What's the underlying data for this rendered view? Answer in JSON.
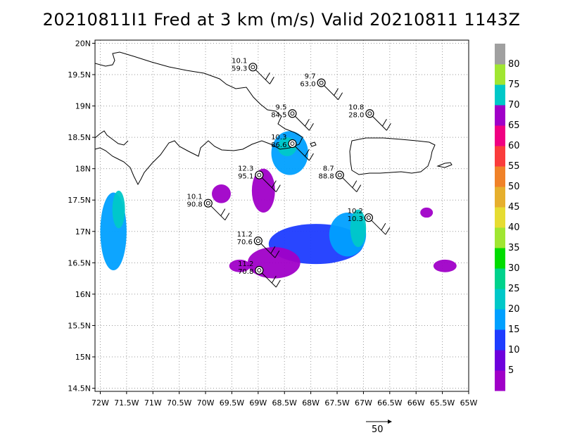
{
  "title": "20210811I1 Fred at 3 km (m/s) Valid 20210811  1143Z",
  "map": {
    "lon_range": [
      -72.1,
      -65.0
    ],
    "lat_range": [
      14.45,
      20.05
    ],
    "x_ticks": [
      {
        "v": -72,
        "label": "72W"
      },
      {
        "v": -71.5,
        "label": "71.5W"
      },
      {
        "v": -71,
        "label": "71W"
      },
      {
        "v": -70.5,
        "label": "70.5W"
      },
      {
        "v": -70,
        "label": "70W"
      },
      {
        "v": -69.5,
        "label": "69.5W"
      },
      {
        "v": -69,
        "label": "69W"
      },
      {
        "v": -68.5,
        "label": "68.5W"
      },
      {
        "v": -68,
        "label": "68W"
      },
      {
        "v": -67.5,
        "label": "67.5W"
      },
      {
        "v": -67,
        "label": "67W"
      },
      {
        "v": -66.5,
        "label": "66.5W"
      },
      {
        "v": -66,
        "label": "66W"
      },
      {
        "v": -65.5,
        "label": "65.5W"
      },
      {
        "v": -65,
        "label": "65W"
      }
    ],
    "y_ticks": [
      {
        "v": 20,
        "label": "20N"
      },
      {
        "v": 19.5,
        "label": "19.5N"
      },
      {
        "v": 19,
        "label": "19N"
      },
      {
        "v": 18.5,
        "label": "18.5N"
      },
      {
        "v": 18,
        "label": "18N"
      },
      {
        "v": 17.5,
        "label": "17.5N"
      },
      {
        "v": 17,
        "label": "17N"
      },
      {
        "v": 16.5,
        "label": "16.5N"
      },
      {
        "v": 16,
        "label": "16N"
      },
      {
        "v": 15.5,
        "label": "15.5N"
      },
      {
        "v": 15,
        "label": "15N"
      },
      {
        "v": 14.5,
        "label": "14.5N"
      }
    ],
    "grid": "dotted"
  },
  "colorbar": {
    "labels": [
      "5",
      "10",
      "15",
      "20",
      "25",
      "30",
      "35",
      "40",
      "45",
      "50",
      "55",
      "60",
      "65",
      "70",
      "75",
      "80"
    ],
    "colors": [
      "#a000c8",
      "#6e00dc",
      "#1e3cff",
      "#00a0ff",
      "#00c8c8",
      "#00d28c",
      "#00dc00",
      "#a0e632",
      "#e6dc32",
      "#e6af2d",
      "#f08228",
      "#fa3c3c",
      "#f00082",
      "#a000c8",
      "#00c8c8",
      "#a0e632",
      "#a0a0a0"
    ]
  },
  "observations": [
    {
      "label_top": "10.1",
      "label_bottom": "59.3",
      "lon": -69.1,
      "lat": 19.62
    },
    {
      "label_top": "9.7",
      "label_bottom": "63.0",
      "lon": -67.8,
      "lat": 19.37
    },
    {
      "label_top": "9.5",
      "label_bottom": "84.5",
      "lon": -68.35,
      "lat": 18.88
    },
    {
      "label_top": "10.8",
      "label_bottom": "28.0",
      "lon": -66.88,
      "lat": 18.88
    },
    {
      "label_top": "10.3",
      "label_bottom": "86.6",
      "lon": -68.35,
      "lat": 18.4
    },
    {
      "label_top": "12.3",
      "label_bottom": "95.1",
      "lon": -68.98,
      "lat": 17.9
    },
    {
      "label_top": "8.7",
      "label_bottom": "88.8",
      "lon": -67.45,
      "lat": 17.9
    },
    {
      "label_top": "10.1",
      "label_bottom": "90.8",
      "lon": -69.95,
      "lat": 17.45
    },
    {
      "label_top": "10.2",
      "label_bottom": "10.3",
      "lon": -66.9,
      "lat": 17.22
    },
    {
      "label_top": "11.2",
      "label_bottom": "70.6",
      "lon": -69.0,
      "lat": 16.85
    },
    {
      "label_top": "11.2",
      "label_bottom": "70.8",
      "lon": -68.98,
      "lat": 16.38
    }
  ],
  "scale_vector": {
    "label": "50"
  }
}
